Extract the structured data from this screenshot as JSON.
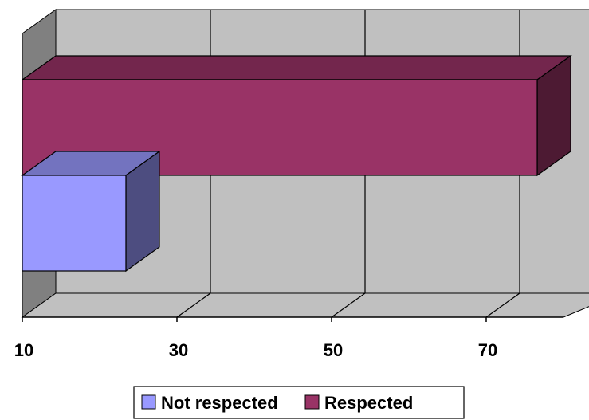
{
  "chart_data": {
    "type": "bar",
    "orientation": "horizontal",
    "style": "3d",
    "xlim": [
      10,
      80
    ],
    "ticks": [
      10,
      30,
      50,
      70
    ],
    "tick_labels": [
      "10",
      "30",
      "50",
      "70"
    ],
    "grid": true,
    "legend_position": "bottom",
    "legend_border": true,
    "series": [
      {
        "name": "Not respected",
        "value": 23.4,
        "color": "#9999FF"
      },
      {
        "name": "Respected",
        "value": 76.6,
        "color": "#993366"
      }
    ]
  },
  "legend": {
    "items": [
      {
        "label": "Not respected",
        "color": "#9999FF"
      },
      {
        "label": "Respected",
        "color": "#993366"
      }
    ]
  }
}
